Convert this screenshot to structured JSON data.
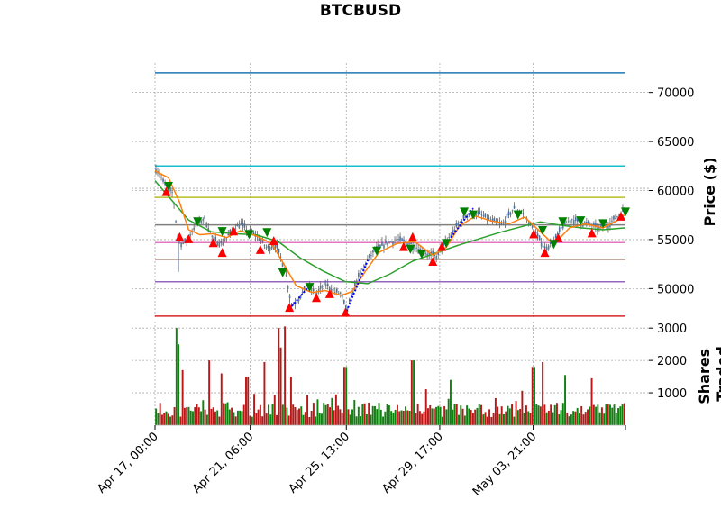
{
  "chart_data": {
    "type": "candlestick",
    "title": "BTCBUSD",
    "ylabel": "Price ($)",
    "volume_ylabel_lines": [
      "Shares",
      "Traded"
    ],
    "x_tick_labels": [
      "Apr 17, 00:00",
      "Apr 21, 06:00",
      "Apr 25, 13:00",
      "Apr 29, 17:00",
      "May 03, 21:00"
    ],
    "x_tick_days": [
      0,
      4.25,
      8.54,
      12.71,
      16.88
    ],
    "x_range_days": [
      0,
      21
    ],
    "price_ylim": [
      47000,
      73000
    ],
    "price_ticks": [
      50000,
      55000,
      60000,
      65000,
      70000
    ],
    "price_tick_labels": [
      "50000",
      "55000",
      "60000",
      "65000",
      "70000"
    ],
    "volume_ylim": [
      0,
      3200
    ],
    "volume_ticks": [
      1000,
      2000,
      3000
    ],
    "volume_tick_labels": [
      "1000",
      "2000",
      "3000"
    ],
    "grid": true,
    "colors": {
      "up": "#008000",
      "down": "#ff0000",
      "wick": "#606060",
      "ma_fast": "#ff7f0e",
      "ma_slow": "#2ca02c",
      "buy_marker": "#008000",
      "sell_marker": "#ff0000",
      "trend": "#0000ff"
    },
    "levels": [
      {
        "price": 72000,
        "color": "#1f77b4"
      },
      {
        "price": 62500,
        "color": "#17becf"
      },
      {
        "price": 59300,
        "color": "#bcbd22"
      },
      {
        "price": 56500,
        "color": "#7f7f7f"
      },
      {
        "price": 54700,
        "color": "#e377c2"
      },
      {
        "price": 53000,
        "color": "#8c564b"
      },
      {
        "price": 50700,
        "color": "#9467bd"
      },
      {
        "price": 47200,
        "color": "#d62728"
      }
    ],
    "price_path": [
      {
        "x": 0,
        "y": 62300
      },
      {
        "x": 0.2,
        "y": 61800
      },
      {
        "x": 0.4,
        "y": 60700
      },
      {
        "x": 0.6,
        "y": 60100
      },
      {
        "x": 0.8,
        "y": 59700
      },
      {
        "x": 1.0,
        "y": 55400
      },
      {
        "x": 1.2,
        "y": 54500
      },
      {
        "x": 1.45,
        "y": 55000
      },
      {
        "x": 1.8,
        "y": 56500
      },
      {
        "x": 2.2,
        "y": 57200
      },
      {
        "x": 2.6,
        "y": 55000
      },
      {
        "x": 3.0,
        "y": 54600
      },
      {
        "x": 3.4,
        "y": 55800
      },
      {
        "x": 3.8,
        "y": 56600
      },
      {
        "x": 4.2,
        "y": 55800
      },
      {
        "x": 4.6,
        "y": 55300
      },
      {
        "x": 5.0,
        "y": 54100
      },
      {
        "x": 5.4,
        "y": 54500
      },
      {
        "x": 5.8,
        "y": 52000
      },
      {
        "x": 6.1,
        "y": 48200
      },
      {
        "x": 6.4,
        "y": 49000
      },
      {
        "x": 6.8,
        "y": 50200
      },
      {
        "x": 7.2,
        "y": 49500
      },
      {
        "x": 7.6,
        "y": 50500
      },
      {
        "x": 8.0,
        "y": 49700
      },
      {
        "x": 8.3,
        "y": 49500
      },
      {
        "x": 8.55,
        "y": 47700
      },
      {
        "x": 9.0,
        "y": 50800
      },
      {
        "x": 9.4,
        "y": 52600
      },
      {
        "x": 9.8,
        "y": 53900
      },
      {
        "x": 10.3,
        "y": 54600
      },
      {
        "x": 10.8,
        "y": 55000
      },
      {
        "x": 11.3,
        "y": 54700
      },
      {
        "x": 11.8,
        "y": 54000
      },
      {
        "x": 12.2,
        "y": 53500
      },
      {
        "x": 12.6,
        "y": 53300
      },
      {
        "x": 13.0,
        "y": 54800
      },
      {
        "x": 13.5,
        "y": 56500
      },
      {
        "x": 14.0,
        "y": 57700
      },
      {
        "x": 14.5,
        "y": 57600
      },
      {
        "x": 15.0,
        "y": 56900
      },
      {
        "x": 15.5,
        "y": 56500
      },
      {
        "x": 16.0,
        "y": 58200
      },
      {
        "x": 16.4,
        "y": 57700
      },
      {
        "x": 16.9,
        "y": 56000
      },
      {
        "x": 17.4,
        "y": 54100
      },
      {
        "x": 17.8,
        "y": 54800
      },
      {
        "x": 18.2,
        "y": 56400
      },
      {
        "x": 18.6,
        "y": 57100
      },
      {
        "x": 19.0,
        "y": 56700
      },
      {
        "x": 19.4,
        "y": 56600
      },
      {
        "x": 19.8,
        "y": 56100
      },
      {
        "x": 20.2,
        "y": 56500
      },
      {
        "x": 20.6,
        "y": 57300
      },
      {
        "x": 21.0,
        "y": 58100
      }
    ],
    "ma_fast": [
      {
        "x": 0,
        "y": 62000
      },
      {
        "x": 0.6,
        "y": 61300
      },
      {
        "x": 1.1,
        "y": 58800
      },
      {
        "x": 1.5,
        "y": 56000
      },
      {
        "x": 2.0,
        "y": 55500
      },
      {
        "x": 2.6,
        "y": 55600
      },
      {
        "x": 3.2,
        "y": 55200
      },
      {
        "x": 3.8,
        "y": 55900
      },
      {
        "x": 4.5,
        "y": 55400
      },
      {
        "x": 5.2,
        "y": 54600
      },
      {
        "x": 5.8,
        "y": 52300
      },
      {
        "x": 6.3,
        "y": 50300
      },
      {
        "x": 7.0,
        "y": 49600
      },
      {
        "x": 7.6,
        "y": 49800
      },
      {
        "x": 8.3,
        "y": 49300
      },
      {
        "x": 8.8,
        "y": 49700
      },
      {
        "x": 9.4,
        "y": 51800
      },
      {
        "x": 10.0,
        "y": 53700
      },
      {
        "x": 10.8,
        "y": 54600
      },
      {
        "x": 11.6,
        "y": 54800
      },
      {
        "x": 12.4,
        "y": 53400
      },
      {
        "x": 13.0,
        "y": 54200
      },
      {
        "x": 13.6,
        "y": 56400
      },
      {
        "x": 14.3,
        "y": 57400
      },
      {
        "x": 15.0,
        "y": 56900
      },
      {
        "x": 15.8,
        "y": 56600
      },
      {
        "x": 16.5,
        "y": 57300
      },
      {
        "x": 17.2,
        "y": 55800
      },
      {
        "x": 17.8,
        "y": 54500
      },
      {
        "x": 18.5,
        "y": 56200
      },
      {
        "x": 19.2,
        "y": 56600
      },
      {
        "x": 20.0,
        "y": 56200
      },
      {
        "x": 20.6,
        "y": 56900
      },
      {
        "x": 21.0,
        "y": 57600
      }
    ],
    "ma_slow": [
      {
        "x": 0,
        "y": 61000
      },
      {
        "x": 1.5,
        "y": 57000
      },
      {
        "x": 2.5,
        "y": 55800
      },
      {
        "x": 3.5,
        "y": 55600
      },
      {
        "x": 4.5,
        "y": 55500
      },
      {
        "x": 5.5,
        "y": 54800
      },
      {
        "x": 6.5,
        "y": 53100
      },
      {
        "x": 7.5,
        "y": 51800
      },
      {
        "x": 8.5,
        "y": 50700
      },
      {
        "x": 9.5,
        "y": 50500
      },
      {
        "x": 10.5,
        "y": 51500
      },
      {
        "x": 11.5,
        "y": 52800
      },
      {
        "x": 12.5,
        "y": 53600
      },
      {
        "x": 13.5,
        "y": 54400
      },
      {
        "x": 14.5,
        "y": 55100
      },
      {
        "x": 15.5,
        "y": 55800
      },
      {
        "x": 16.5,
        "y": 56400
      },
      {
        "x": 17.2,
        "y": 56800
      },
      {
        "x": 18.0,
        "y": 56500
      },
      {
        "x": 19.0,
        "y": 56200
      },
      {
        "x": 20.0,
        "y": 56000
      },
      {
        "x": 21.0,
        "y": 56200
      }
    ],
    "trend_segments": [
      {
        "x1": 6.1,
        "y1": 48200,
        "x2": 6.9,
        "y2": 50300
      },
      {
        "x1": 8.55,
        "y1": 47700,
        "x2": 9.5,
        "y2": 52900
      },
      {
        "x1": 13.2,
        "y1": 55200,
        "x2": 14.2,
        "y2": 58200
      }
    ],
    "buy_markers": [
      {
        "x": 0.6,
        "y": 60500
      },
      {
        "x": 1.9,
        "y": 56900
      },
      {
        "x": 3.0,
        "y": 55900
      },
      {
        "x": 4.2,
        "y": 55600
      },
      {
        "x": 5.0,
        "y": 55800
      },
      {
        "x": 5.7,
        "y": 51700
      },
      {
        "x": 6.9,
        "y": 50200
      },
      {
        "x": 9.9,
        "y": 53900
      },
      {
        "x": 11.4,
        "y": 54100
      },
      {
        "x": 11.9,
        "y": 53600
      },
      {
        "x": 13.0,
        "y": 54700
      },
      {
        "x": 13.8,
        "y": 57900
      },
      {
        "x": 14.2,
        "y": 57600
      },
      {
        "x": 16.2,
        "y": 57600
      },
      {
        "x": 17.3,
        "y": 56000
      },
      {
        "x": 17.8,
        "y": 54600
      },
      {
        "x": 18.2,
        "y": 56900
      },
      {
        "x": 19.0,
        "y": 57000
      },
      {
        "x": 20.0,
        "y": 56700
      },
      {
        "x": 21.0,
        "y": 57900
      }
    ],
    "sell_markers": [
      {
        "x": 0.5,
        "y": 59800
      },
      {
        "x": 1.1,
        "y": 55200
      },
      {
        "x": 1.5,
        "y": 55000
      },
      {
        "x": 2.6,
        "y": 54600
      },
      {
        "x": 3.0,
        "y": 53600
      },
      {
        "x": 3.5,
        "y": 55800
      },
      {
        "x": 4.7,
        "y": 53900
      },
      {
        "x": 5.3,
        "y": 54800
      },
      {
        "x": 6.0,
        "y": 48000
      },
      {
        "x": 7.2,
        "y": 49000
      },
      {
        "x": 7.8,
        "y": 49400
      },
      {
        "x": 8.5,
        "y": 47500
      },
      {
        "x": 11.1,
        "y": 54200
      },
      {
        "x": 11.5,
        "y": 55200
      },
      {
        "x": 12.8,
        "y": 54200
      },
      {
        "x": 12.4,
        "y": 52700
      },
      {
        "x": 16.9,
        "y": 55500
      },
      {
        "x": 17.4,
        "y": 53600
      },
      {
        "x": 18.0,
        "y": 55100
      },
      {
        "x": 19.5,
        "y": 55600
      },
      {
        "x": 20.8,
        "y": 57300
      }
    ],
    "volume_spikes": [
      {
        "x": 0.95,
        "y": 3000
      },
      {
        "x": 1.0,
        "y": 2500
      },
      {
        "x": 1.2,
        "y": 1700
      },
      {
        "x": 2.4,
        "y": 2000
      },
      {
        "x": 3.0,
        "y": 1600
      },
      {
        "x": 4.1,
        "y": 1500
      },
      {
        "x": 4.9,
        "y": 1950
      },
      {
        "x": 5.5,
        "y": 3000
      },
      {
        "x": 5.6,
        "y": 2400
      },
      {
        "x": 5.8,
        "y": 3050
      },
      {
        "x": 6.1,
        "y": 1500
      },
      {
        "x": 8.5,
        "y": 1800
      },
      {
        "x": 11.5,
        "y": 2000
      },
      {
        "x": 13.2,
        "y": 1400
      },
      {
        "x": 16.9,
        "y": 1800
      },
      {
        "x": 17.3,
        "y": 1950
      },
      {
        "x": 18.3,
        "y": 1550
      },
      {
        "x": 19.5,
        "y": 1450
      }
    ]
  }
}
